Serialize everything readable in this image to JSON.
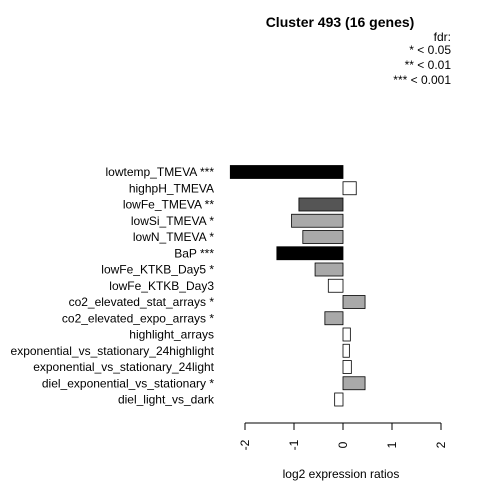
{
  "chart_data": {
    "type": "bar",
    "orientation": "horizontal",
    "title": "Cluster 493 (16 genes)",
    "xlabel": "log2 expression ratios",
    "xlim": [
      -2,
      2
    ],
    "xticks": [
      -2,
      -1,
      0,
      1,
      2
    ],
    "xtick_labels": [
      "-2",
      "-1",
      "0",
      "1",
      "2"
    ],
    "legend": {
      "title": "fdr:",
      "entries": [
        "* < 0.05",
        "** < 0.01",
        "*** < 0.001"
      ],
      "position": "top-right"
    },
    "categories": [
      "lowtemp_TMEVA ***",
      "highpH_TMEVA",
      "lowFe_TMEVA **",
      "lowSi_TMEVA *",
      "lowN_TMEVA *",
      "BaP ***",
      "lowFe_KTKB_Day5 *",
      "lowFe_KTKB_Day3",
      "co2_elevated_stat_arrays *",
      "co2_elevated_expo_arrays *",
      "highlight_arrays",
      "exponential_vs_stationary_24highlight",
      "exponential_vs_stationary_24light",
      "diel_exponential_vs_stationary *",
      "diel_light_vs_dark"
    ],
    "values": [
      -2.3,
      0.27,
      -0.9,
      -1.05,
      -0.82,
      -1.35,
      -0.57,
      -0.3,
      0.45,
      -0.37,
      0.15,
      0.13,
      0.17,
      0.45,
      -0.17
    ],
    "fill_colors": [
      "#000000",
      "#ffffff",
      "#555555",
      "#a9a9a9",
      "#a9a9a9",
      "#000000",
      "#a9a9a9",
      "#ffffff",
      "#a9a9a9",
      "#a9a9a9",
      "#ffffff",
      "#ffffff",
      "#ffffff",
      "#a9a9a9",
      "#ffffff"
    ]
  }
}
